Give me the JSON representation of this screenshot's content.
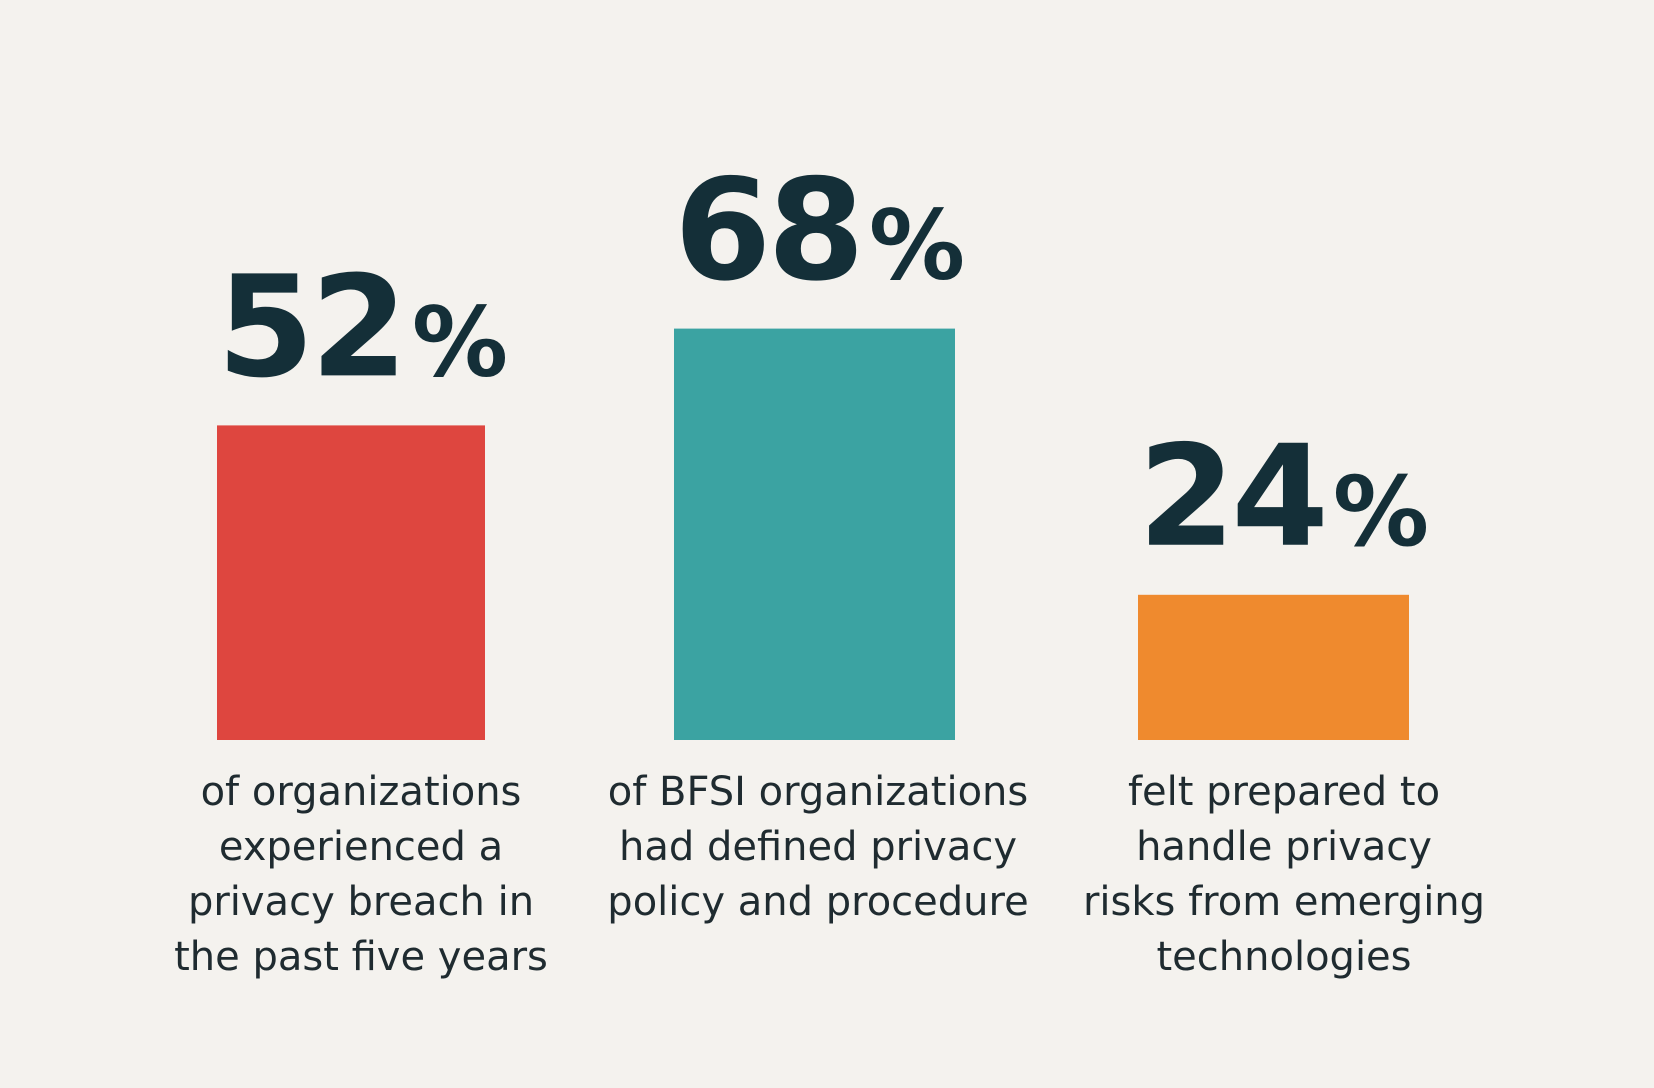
{
  "chart_data": {
    "type": "bar",
    "categories": [
      "of organizations experienced a privacy breach in the past five years",
      "of BFSI organizations had defined privacy policy and procedure",
      "felt prepared to handle privacy risks from emerging technologies"
    ],
    "values": [
      52,
      68,
      24
    ],
    "unit": "%",
    "value_labels": [
      "52%",
      "68%",
      "24%"
    ],
    "caption_lines": [
      [
        "of organizations",
        "experienced a",
        "privacy breach in",
        "the past five years"
      ],
      [
        "of BFSI organizations",
        "had defined privacy",
        "policy and procedure"
      ],
      [
        "felt prepared to",
        "handle privacy",
        "risks from emerging",
        "technologies"
      ]
    ],
    "colors": [
      "#de463f",
      "#3ba3a2",
      "#ef8a2e"
    ],
    "value_color": "#142f38",
    "caption_color": "#1f2b30",
    "background": "#f4f2ee",
    "grid": false,
    "legend": "none",
    "title": "",
    "xlabel": "",
    "ylabel": ""
  }
}
